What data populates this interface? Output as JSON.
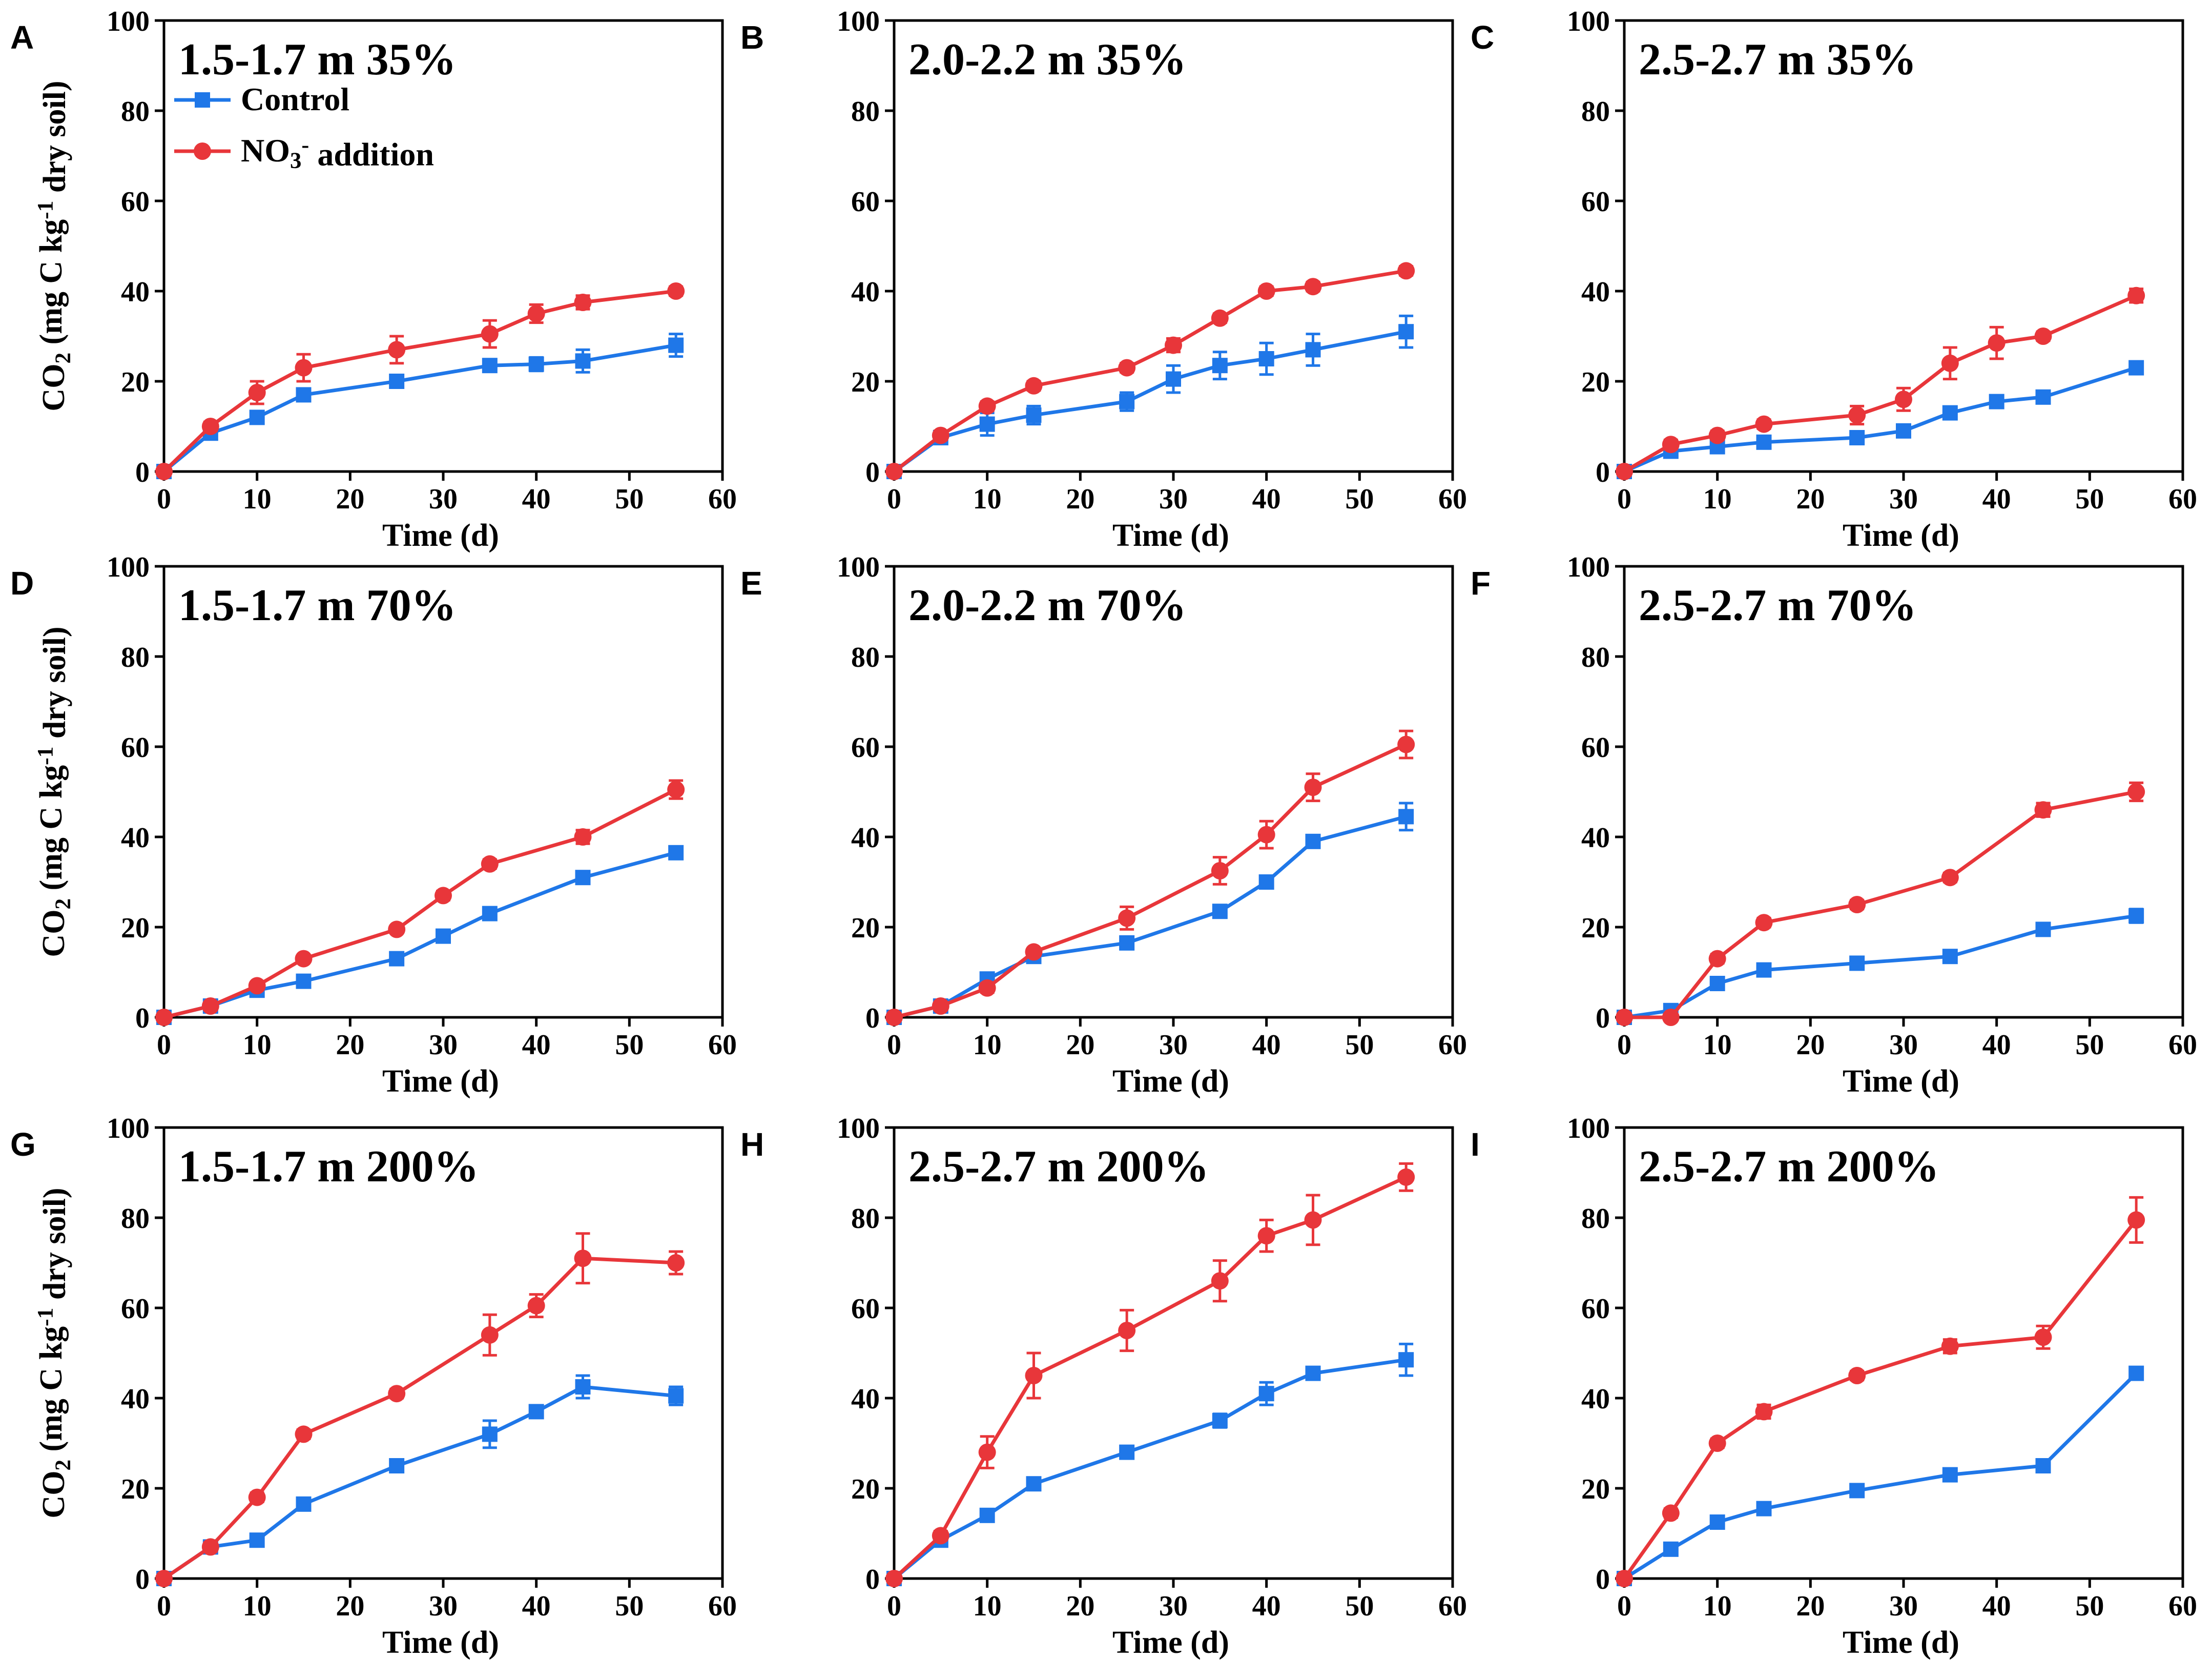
{
  "chart_data": {
    "type": "line",
    "shared": {
      "xlabel": "Time (d)",
      "ylabel": "CO2 (mg C kg-1 dry soil)",
      "xlim": [
        0,
        60
      ],
      "ylim": [
        0,
        100
      ],
      "xticks": [
        0,
        10,
        20,
        30,
        40,
        50,
        60
      ],
      "yticks": [
        0,
        20,
        40,
        60,
        80,
        100
      ],
      "legend": {
        "position": "top-left of panel A",
        "entries": [
          {
            "name": "Control",
            "color": "#1f77e8",
            "marker": "square"
          },
          {
            "name": "NO3- addition",
            "color": "#e8363a",
            "marker": "circle"
          }
        ]
      }
    },
    "panels": [
      {
        "letter": "A",
        "title": "1.5-1.7 m 35%",
        "ylabel_shown": true,
        "series": [
          {
            "name": "Control",
            "x": [
              0,
              5,
              10,
              15,
              25,
              35,
              40,
              45,
              55
            ],
            "values": [
              0,
              8.5,
              12,
              17,
              20,
              23.5,
              23.8,
              24.5,
              28
            ],
            "errors": [
              0,
              1,
              1,
              1,
              1,
              1,
              1.5,
              2.5,
              2.5
            ]
          },
          {
            "name": "NO3- addition",
            "x": [
              0,
              5,
              10,
              15,
              25,
              35,
              40,
              45,
              55
            ],
            "values": [
              0,
              10,
              17.5,
              23,
              27,
              30.5,
              35,
              37.5,
              40
            ],
            "errors": [
              0,
              1,
              2.5,
              3,
              3,
              3,
              2,
              1.5,
              1
            ]
          }
        ]
      },
      {
        "letter": "B",
        "title": "2.0-2.2 m 35%",
        "ylabel_shown": false,
        "series": [
          {
            "name": "Control",
            "x": [
              0,
              5,
              10,
              15,
              25,
              30,
              35,
              40,
              45,
              55
            ],
            "values": [
              0,
              7.5,
              10.5,
              12.5,
              15.5,
              20.5,
              23.5,
              25,
              27,
              31
            ],
            "errors": [
              0,
              1,
              2.5,
              2,
              2,
              3,
              3,
              3.5,
              3.5,
              3.5
            ]
          },
          {
            "name": "NO3- addition",
            "x": [
              0,
              5,
              10,
              15,
              25,
              30,
              35,
              40,
              45,
              55
            ],
            "values": [
              0,
              8,
              14.5,
              19,
              23,
              28,
              34,
              40,
              41,
              44.5
            ],
            "errors": [
              0,
              1,
              1,
              1,
              1,
              1.5,
              1,
              1,
              1,
              1
            ]
          }
        ]
      },
      {
        "letter": "C",
        "title": "2.5-2.7 m 35%",
        "ylabel_shown": false,
        "series": [
          {
            "name": "Control",
            "x": [
              0,
              5,
              10,
              15,
              25,
              30,
              35,
              40,
              45,
              55
            ],
            "values": [
              0,
              4.5,
              5.5,
              6.5,
              7.5,
              9,
              13,
              15.5,
              16.5,
              23
            ],
            "errors": [
              0,
              1,
              1,
              1,
              1,
              1,
              1,
              1,
              1,
              1
            ]
          },
          {
            "name": "NO3- addition",
            "x": [
              0,
              5,
              10,
              15,
              25,
              30,
              35,
              40,
              45,
              55
            ],
            "values": [
              0,
              6,
              8,
              10.5,
              12.5,
              16,
              24,
              28.5,
              30,
              39
            ],
            "errors": [
              0,
              1,
              1,
              1,
              2,
              2.5,
              3.5,
              3.5,
              1,
              1.5
            ]
          }
        ]
      },
      {
        "letter": "D",
        "title": "1.5-1.7 m 70%",
        "ylabel_shown": true,
        "series": [
          {
            "name": "Control",
            "x": [
              0,
              5,
              10,
              15,
              25,
              30,
              35,
              45,
              55
            ],
            "values": [
              0,
              2.5,
              6,
              8,
              13,
              18,
              23,
              31,
              36.5
            ],
            "errors": [
              0,
              0.5,
              0.5,
              0.5,
              0.5,
              0.5,
              0.5,
              1,
              1
            ]
          },
          {
            "name": "NO3- addition",
            "x": [
              0,
              5,
              10,
              15,
              25,
              30,
              35,
              45,
              55
            ],
            "values": [
              0,
              2.5,
              7,
              13,
              19.5,
              27,
              34,
              40,
              50.5
            ],
            "errors": [
              0,
              0.5,
              0.5,
              0.5,
              0.5,
              1,
              1,
              1.5,
              2
            ]
          }
        ]
      },
      {
        "letter": "E",
        "title": "2.0-2.2 m 70%",
        "ylabel_shown": false,
        "series": [
          {
            "name": "Control",
            "x": [
              0,
              5,
              10,
              15,
              25,
              35,
              40,
              45,
              55
            ],
            "values": [
              0,
              2.5,
              8.5,
              13.5,
              16.5,
              23.5,
              30,
              39,
              44.5
            ],
            "errors": [
              0,
              0.5,
              1,
              0.5,
              1,
              1,
              1,
              1,
              3
            ]
          },
          {
            "name": "NO3- addition",
            "x": [
              0,
              5,
              10,
              15,
              25,
              35,
              40,
              45,
              55
            ],
            "values": [
              0,
              2.5,
              6.5,
              14.5,
              22,
              32.5,
              40.5,
              51,
              60.5
            ],
            "errors": [
              0,
              0.5,
              1,
              0.5,
              2.5,
              3,
              3,
              3,
              3
            ]
          }
        ]
      },
      {
        "letter": "F",
        "title": "2.5-2.7 m 70%",
        "ylabel_shown": false,
        "series": [
          {
            "name": "Control",
            "x": [
              0,
              5,
              10,
              15,
              25,
              35,
              45,
              55
            ],
            "values": [
              0,
              1.5,
              7.5,
              10.5,
              12,
              13.5,
              19.5,
              22.5
            ],
            "errors": [
              0,
              0.5,
              1,
              1,
              1,
              1,
              1,
              1.5
            ]
          },
          {
            "name": "NO3- addition",
            "x": [
              0,
              5,
              10,
              15,
              25,
              35,
              45,
              55
            ],
            "values": [
              0,
              0,
              13,
              21,
              25,
              31,
              46,
              50
            ],
            "errors": [
              0,
              0.5,
              1,
              1,
              1,
              1,
              1.5,
              2
            ]
          }
        ]
      },
      {
        "letter": "G",
        "title": "1.5-1.7 m 200%",
        "ylabel_shown": true,
        "series": [
          {
            "name": "Control",
            "x": [
              0,
              5,
              10,
              15,
              25,
              35,
              40,
              45,
              55
            ],
            "values": [
              0,
              7,
              8.5,
              16.5,
              25,
              32,
              37,
              42.5,
              40.5
            ],
            "errors": [
              0,
              1,
              1,
              1,
              1,
              3,
              1,
              2.5,
              2
            ]
          },
          {
            "name": "NO3- addition",
            "x": [
              0,
              5,
              10,
              15,
              25,
              35,
              40,
              45,
              55
            ],
            "values": [
              0,
              7,
              18,
              32,
              41,
              54,
              60.5,
              71,
              70
            ],
            "errors": [
              0,
              1,
              1,
              1,
              1,
              4.5,
              2.5,
              5.5,
              2.5
            ]
          }
        ]
      },
      {
        "letter": "H",
        "title": "2.5-2.7 m 200%",
        "ylabel_shown": false,
        "series": [
          {
            "name": "Control",
            "x": [
              0,
              5,
              10,
              15,
              25,
              35,
              40,
              45,
              55
            ],
            "values": [
              0,
              8.5,
              14,
              21,
              28,
              35,
              41,
              45.5,
              48.5
            ],
            "errors": [
              0,
              1,
              1,
              1,
              1,
              1.5,
              2.5,
              1,
              3.5
            ]
          },
          {
            "name": "NO3- addition",
            "x": [
              0,
              5,
              10,
              15,
              25,
              35,
              40,
              45,
              55
            ],
            "values": [
              0,
              9.5,
              28,
              45,
              55,
              66,
              76,
              79.5,
              89
            ],
            "errors": [
              0,
              1,
              3.5,
              5,
              4.5,
              4.5,
              3.5,
              5.5,
              3
            ]
          }
        ]
      },
      {
        "letter": "I",
        "title": "2.5-2.7 m 200%",
        "ylabel_shown": false,
        "series": [
          {
            "name": "Control",
            "x": [
              0,
              5,
              10,
              15,
              25,
              35,
              45,
              55
            ],
            "values": [
              0,
              6.5,
              12.5,
              15.5,
              19.5,
              23,
              25,
              45.5
            ],
            "errors": [
              0,
              1,
              1,
              1,
              1,
              1,
              1,
              1
            ]
          },
          {
            "name": "NO3- addition",
            "x": [
              0,
              5,
              10,
              15,
              25,
              35,
              45,
              55
            ],
            "values": [
              0,
              14.5,
              30,
              37,
              45,
              51.5,
              53.5,
              79.5
            ],
            "errors": [
              0,
              1,
              1,
              1.5,
              1,
              1.5,
              2.5,
              5
            ]
          }
        ]
      }
    ]
  }
}
